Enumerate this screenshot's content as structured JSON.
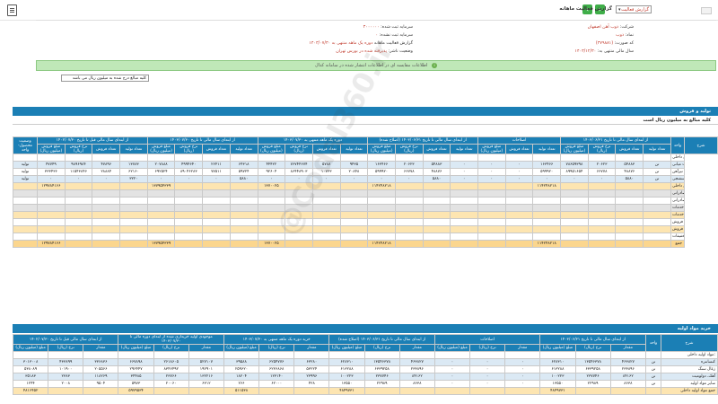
{
  "topbar": {
    "print_icon": "print-icon",
    "prev_label": "‹",
    "next_label": "›",
    "report_select": "گزارش فعالیت",
    "title": "گزارش فعالیت ماهانه"
  },
  "info": {
    "company_label": "شرکت:",
    "company_value": "ذوب آهن اصفهان",
    "symbol_label": "نماد:",
    "symbol_value": "ذوب",
    "code_label": "کد صورت:",
    "code_value": "(۳۷۹۸۸۱)",
    "period_label": "سال مالی منتهی به:",
    "period_value": "۱۴۰۳/۱۲/۳۰",
    "capital_label": "سرمایه ثبت شده:",
    "capital_value": "۳۰۰۰۰۰۰",
    "unreg_label": "سرمایه ثبت نشده:",
    "unreg_value": "۰",
    "report_label": "گزارش فعالیت ماهانه",
    "report_value": "دوره یک ماهه منتهی به ۱۴۰۳/۰۷/۳۰",
    "status_label": "وضعیت ناشر:",
    "status_value": "پذیرفته شده در بورس تهران"
  },
  "notice": "اطلاعات مقایسه ای در اطلاعات انتشار شده در سامانه کدال",
  "filter_text": "کلیه مبالغ درج شده به میلیون ریال می باشد",
  "watermark": "@Codal360.ir",
  "section1": {
    "title": "تولید و فروش",
    "subtitle": "کلیه مبالغ به میلیون ریال است",
    "headers": [
      "شرح",
      "واحد",
      "از ابتدای سال مالی تا تاریخ ۱۴۰۳/۰۶/۳۱",
      "اصلاحات",
      "از ابتدای سال مالی تا تاریخ ۱۴۰۳/۰۶/۳۱ (اصلاح شده)",
      "دوره یک ماهه منتهی به ۱۴۰۳/۰۷/۳۰",
      "از ابتدای سال مالی تا تاریخ ۱۴۰۳/۰۷/۳۰",
      "از ابتدای سال مالی قبل تا تاریخ ۱۴۰۲/۰۷/۳۰",
      "وضعیت محصول-واحد"
    ],
    "subheaders": [
      "تعداد تولید",
      "تعداد فروش",
      "نرخ فروش (ریال)",
      "مبلغ فروش (میلیون ریال)"
    ],
    "rows": [
      {
        "cls": "row-white",
        "label": "فروش داخلی:",
        "unit": "",
        "cells": [
          "",
          "",
          "",
          "",
          "",
          "",
          "",
          "",
          "",
          "",
          "",
          "",
          "",
          "",
          "",
          "",
          "",
          "",
          "",
          "",
          "",
          "",
          "",
          "",
          ""
        ]
      },
      {
        "cls": "row-blue",
        "label": "محصولات میانی",
        "unit": "تن",
        "cells": [
          "۵۴۸۸۳",
          "۲۰۶۲۳",
          "۷۸۶۵۹۳۹۸",
          "۱۶۳۴۶۶",
          "۰",
          "۰",
          "۰",
          "۵۴۸۸۳",
          "۲۰۶۲۳",
          "۱۶۳۴۶۶",
          "۹۴۳۵",
          "۵۷۸۸",
          "۷۶۷۴۴۶۷۴",
          "۴۴۴۲۲",
          "۶۴۳۱۸",
          "۲۶۴۱۱",
          "۴۹۹۴۶۴۰",
          "۲۰۷۸۸۸",
          "۱۳۷۸۳",
          "۴۷۸۹۶",
          "۹۸۹۶۹۸۴",
          "۴۷۷۴۹",
          "تولید"
        ]
      },
      {
        "cls": "row-white",
        "label": "تیرآهن",
        "unit": "تن",
        "cells": [
          "۴۸۸۷۶",
          "۶۶۷۷۸",
          "۸۹۹۵۱۶۵۴",
          "۵۹۹۹۲۰",
          "۰",
          "۰",
          "۰",
          "۴۸۸۷۶",
          "۶۶۷۷۸",
          "۵۹۹۹۲۰",
          "۲۰۸۴۸",
          "۱۰۷۳۳",
          "۸۶۴۴۸۹۰۳",
          "۹۲۶۰۴",
          "۵۹۷۲۴",
          "۷۷۵۱۱",
          "۸۹۰۴۶۲۸۳",
          "۶۹۲۵۲۴",
          "۶۲۱۶۰",
          "۲۸۸۸۴",
          "۱۱۵۴۳۸۴۶",
          "۳۳۳۴۳۶",
          "تولید"
        ]
      },
      {
        "cls": "row-blue",
        "label": "آهن اسفنجی",
        "unit": "تن",
        "cells": [
          "۵۸۸۰",
          "۰",
          "۰",
          "۰",
          "۰",
          "۰",
          "۰",
          "۵۸۸۰",
          "۰",
          "۰",
          "۰",
          "۰",
          "۰",
          "۰",
          "۵۸۸۰",
          "۰",
          "۰",
          "۰",
          "۳۲۲۰",
          "۰",
          "۰",
          "۰",
          "تولید"
        ]
      },
      {
        "cls": "row-beige",
        "label": "جمع فروش داخلی",
        "unit": "",
        "cells": [
          "",
          "",
          "",
          "۱۱۴۲۴۸۲۱۸",
          "",
          "",
          "",
          "",
          "",
          "۱۱۴۲۴۸۲۱۸",
          "",
          "",
          "",
          "۱۳۷۰۰۲۵",
          "",
          "",
          "",
          "۱۳۷۹۵۴۳۳۹",
          "",
          "",
          "",
          "۱۲۹۷۸۴۱۶۶",
          ""
        ]
      },
      {
        "cls": "row-grey",
        "label": "فروش صادراتی:",
        "unit": "",
        "cells": [
          "",
          "",
          "",
          "",
          "",
          "",
          "",
          "",
          "",
          "",
          "",
          "",
          "",
          "",
          "",
          "",
          "",
          "",
          "",
          "",
          "",
          "",
          ""
        ]
      },
      {
        "cls": "row-white",
        "label": "جمع فروش صادراتی",
        "unit": "",
        "cells": [
          "",
          "",
          "",
          "",
          "",
          "",
          "",
          "",
          "",
          "",
          "",
          "",
          "",
          "",
          "",
          "",
          "",
          "",
          "",
          "",
          "",
          "",
          ""
        ]
      },
      {
        "cls": "row-grey",
        "label": "درآمد ارائه خدمات:",
        "unit": "",
        "cells": [
          "",
          "",
          "",
          "",
          "",
          "",
          "",
          "",
          "",
          "",
          "",
          "",
          "",
          "",
          "",
          "",
          "",
          "",
          "",
          "",
          "",
          "",
          ""
        ]
      },
      {
        "cls": "row-beige",
        "label": "جمع درآمد ارائه خدمات",
        "unit": "",
        "cells": [
          "",
          "",
          "",
          "",
          "",
          "",
          "",
          "",
          "",
          "",
          "",
          "",
          "",
          "",
          "",
          "",
          "",
          "",
          "",
          "",
          "",
          "",
          ""
        ]
      },
      {
        "cls": "row-white",
        "label": "برگشت از فروش:",
        "unit": "",
        "cells": [
          "",
          "",
          "",
          "",
          "",
          "",
          "",
          "",
          "",
          "",
          "",
          "",
          "",
          "",
          "",
          "",
          "",
          "",
          "",
          "",
          "",
          "",
          ""
        ]
      },
      {
        "cls": "row-beige",
        "label": "جمع برگشت از فروش",
        "unit": "",
        "cells": [
          "",
          "",
          "",
          "",
          "",
          "",
          "",
          "",
          "",
          "",
          "",
          "",
          "",
          "",
          "",
          "",
          "",
          "",
          "",
          "",
          "",
          "",
          ""
        ]
      },
      {
        "cls": "row-white",
        "label": "تخفیفات",
        "unit": "",
        "cells": [
          "",
          "",
          "",
          "",
          "",
          "",
          "",
          "",
          "",
          "",
          "",
          "",
          "",
          "",
          "",
          "",
          "",
          "",
          "",
          "",
          "",
          "",
          ""
        ]
      },
      {
        "cls": "row-orange",
        "label": "جمع",
        "unit": "",
        "cells": [
          "",
          "",
          "",
          "۱۱۴۲۴۸۲۱۸",
          "",
          "",
          "",
          "",
          "",
          "۱۱۴۲۴۸۲۱۸",
          "",
          "",
          "",
          "۱۳۷۰۰۲۵",
          "",
          "",
          "",
          "۱۳۷۹۵۴۳۳۹",
          "",
          "",
          "",
          "۱۲۹۷۸۴۱۶۶",
          ""
        ]
      }
    ]
  },
  "section2": {
    "title": "خرید مواد اولیه",
    "headers": [
      "شرح",
      "واحد",
      "از ابتدای سال مالی تا تاریخ ۱۴۰۳/۰۶/۳۱",
      "اصلاحات",
      "از ابتدای سال مالی تا تاریخ ۱۴۰۳/۰۶/۳۱ (اصلاح شده)",
      "خرید دوره یک ماهه منتهی به ۱۴۰۳/۰۷/۳۰",
      "موجودی اولیه خریداری شده از ابتدای دوره مالی تا ۱۴۰۳/۰۷/۳۰",
      "از ابتدای سال مالی قبل تا تاریخ ۱۴۰۲/۰۷/۳۰"
    ],
    "subheaders": [
      "مقدار",
      "نرخ (ریال)",
      "مبلغ (میلیون ریال)"
    ],
    "rows": [
      {
        "cls": "row-white",
        "label": "مواد اولیه داخلی:",
        "unit": "",
        "cells": [
          "",
          "",
          "",
          "",
          "",
          "",
          "",
          "",
          "",
          "",
          "",
          "",
          "",
          "",
          "",
          "",
          "",
          ""
        ]
      },
      {
        "cls": "row-blue",
        "label": "کنسانتره",
        "unit": "تن",
        "cells": [
          "۴۶۳۸۲۷",
          "۱۳۵۴۶۳۷۸",
          "۶۲۸۳۱۰",
          "۰",
          "۰",
          "۰",
          "۴۶۳۸۲۷",
          "۱۳۵۴۶۳۷۸",
          "۶۲۸۳۱۰",
          "۶۳۲۸۰",
          "۶۲۵۴۷۷۶",
          "۳۹۵۸۸",
          "۵۲۷۱۰۷",
          "۲۶۱۸۶۰۵",
          "۶۶۷۸۹۸",
          "۳۳۶۸۳۶",
          "۴۳۳۸۹۹",
          "۳۰۱۳۰۰۸"
        ]
      },
      {
        "cls": "row-white",
        "label": "زغال سنگ",
        "unit": "تن",
        "cells": [
          "۲۳۳۸۹۶",
          "۶۳۳۹۲۵۸",
          "۶۱۳۲۸۸",
          "۰",
          "۰",
          "۰",
          "۲۳۳۸۹۶",
          "۶۳۳۹۲۵۸",
          "۶۱۳۲۸۸",
          "۵۳۲۲۴",
          "۶۲۳۶۸۶۸",
          "۲۵۹۶۲۰",
          "۱۹۲۹۰۱",
          "۸۳۴۶۴۹۲",
          "۲۹۶۴۴۷",
          "۲۰۵۵۶۶",
          "۱۰۱۹۰۰",
          "۵۳۸۰۸۹"
        ]
      },
      {
        "cls": "row-blue",
        "label": "آهک، دولومیت",
        "unit": "تن",
        "cells": [
          "۸۴۱۶۲",
          "۲۳۷۷۴۶",
          "۱۰۰۲۲۳",
          "۰",
          "۰",
          "۰",
          "۸۴۱۶۲",
          "۲۳۷۷۴۶",
          "۱۰۰۲۲۳",
          "۲۳۹۹۶",
          "۱۲۳۱۴۰",
          "۱۸۲۰۴",
          "۱۳۲۲۱۶",
          "۲۳۷۶۶",
          "۳۴۴۸۵",
          "۱۱۸۲۶۹",
          "۲۳۸۳",
          "۳۵۱۸۳"
        ]
      },
      {
        "cls": "row-white",
        "label": "سایر مواد اولیه",
        "unit": "تن",
        "cells": [
          "۸۶۳۸",
          "۲۲۹۸۹",
          "۱۳۵۵۰",
          "۰",
          "۰",
          "۰",
          "۸۶۳۸",
          "۲۲۹۸۹",
          "۱۳۵۵۰",
          "۴۲۸",
          "۶۲۰۰۰",
          "۲۶۶",
          "۶۳۱۲",
          "۲۰۰۶۰",
          "۵۹۷۳",
          "۹۵۰۴",
          "۲۰۰۸",
          "۱۲۴۴"
        ]
      },
      {
        "cls": "row-beige",
        "label": "جمع مواد اولیه داخلی",
        "unit": "",
        "cells": [
          "",
          "",
          "۴۸۴۹۷۳۱",
          "",
          "",
          "",
          "",
          "",
          "۴۸۴۹۷۳۱",
          "",
          "",
          "۵۱۱۵۳۸",
          "",
          "",
          "۵۹۷۹۵۳۴",
          "",
          "",
          "۴۸۱۶۴۵۲"
        ]
      }
    ]
  }
}
